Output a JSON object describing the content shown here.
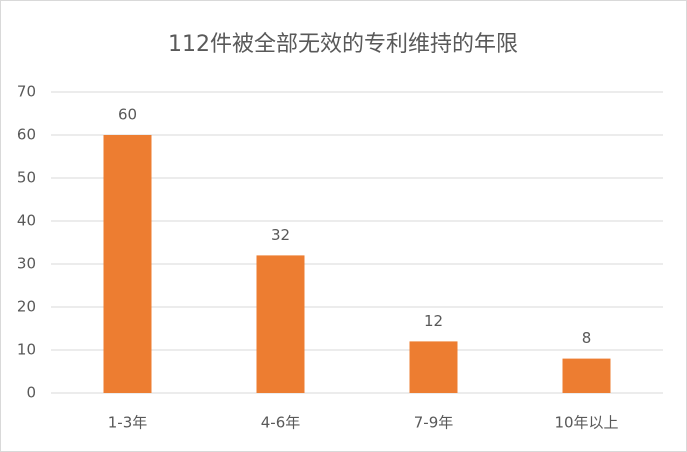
{
  "chart_data": {
    "type": "bar",
    "title": "112件被全部无效的专利维持的年限",
    "categories": [
      "1-3年",
      "4-6年",
      "7-9年",
      "10年以上"
    ],
    "values": [
      60,
      32,
      12,
      8
    ],
    "color": "#ed7d31",
    "ylim": [
      0,
      70
    ],
    "yticks": [
      0,
      10,
      20,
      30,
      40,
      50,
      60,
      70
    ],
    "grid": true,
    "data_labels": true
  }
}
